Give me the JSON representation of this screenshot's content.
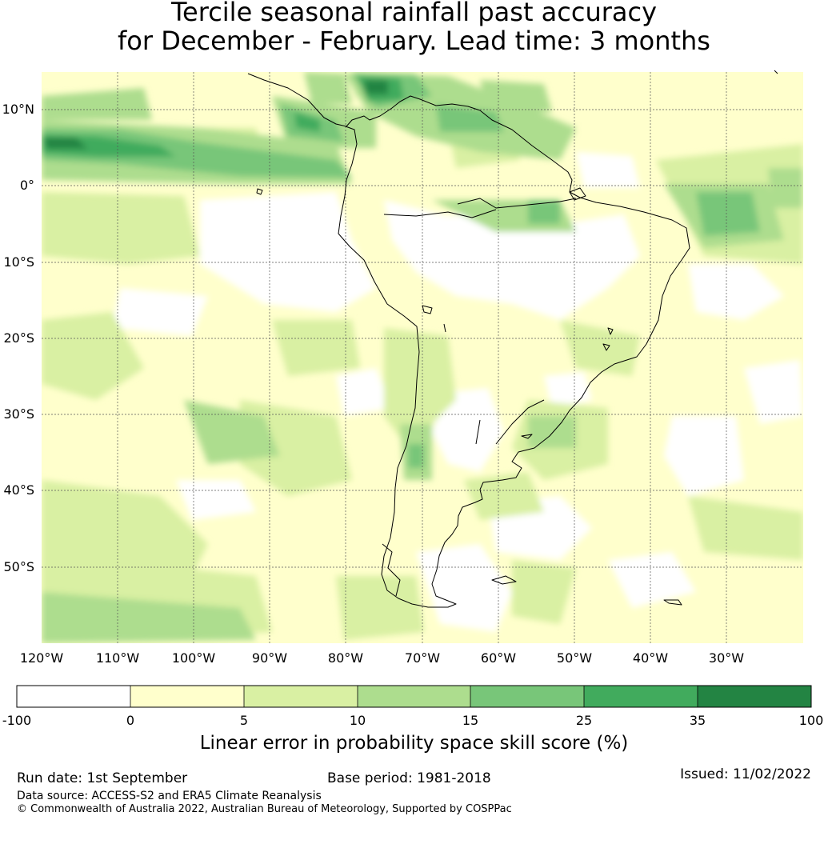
{
  "title": {
    "line1": "Tercile seasonal rainfall past accuracy",
    "line2": "for December - February. Lead time: 3 months"
  },
  "map": {
    "lat_range": [
      -60,
      15
    ],
    "lon_range": [
      -120,
      -20
    ],
    "lat_ticks": [
      {
        "value": 10,
        "label": "10°N"
      },
      {
        "value": 0,
        "label": "0°"
      },
      {
        "value": -10,
        "label": "10°S"
      },
      {
        "value": -20,
        "label": "20°S"
      },
      {
        "value": -30,
        "label": "30°S"
      },
      {
        "value": -40,
        "label": "40°S"
      },
      {
        "value": -50,
        "label": "50°S"
      }
    ],
    "lon_ticks": [
      {
        "value": -120,
        "label": "120°W"
      },
      {
        "value": -110,
        "label": "110°W"
      },
      {
        "value": -100,
        "label": "100°W"
      },
      {
        "value": -90,
        "label": "90°W"
      },
      {
        "value": -80,
        "label": "80°W"
      },
      {
        "value": -70,
        "label": "70°W"
      },
      {
        "value": -60,
        "label": "60°W"
      },
      {
        "value": -50,
        "label": "50°W"
      },
      {
        "value": -40,
        "label": "40°W"
      },
      {
        "value": -30,
        "label": "30°W"
      }
    ],
    "grid": true
  },
  "colorbar": {
    "ticks": [
      "-100",
      "0",
      "5",
      "10",
      "15",
      "25",
      "35",
      "100"
    ],
    "colors": [
      "#ffffff",
      "#ffffcc",
      "#d9f0a3",
      "#addd8e",
      "#78c679",
      "#41ab5d",
      "#238443"
    ],
    "label": "Linear error in probability space skill score (%)"
  },
  "footer": {
    "run_date": "Run date: 1st September",
    "base_period": "Base period: 1981-2018",
    "issued": "Issued: 11/02/2022",
    "data_source": "Data source: ACCESS-S2 and ERA5 Climate Reanalysis",
    "copyright": "© Commonwealth of Australia 2022, Australian Bureau of Meteorology, Supported by COSPPac"
  }
}
